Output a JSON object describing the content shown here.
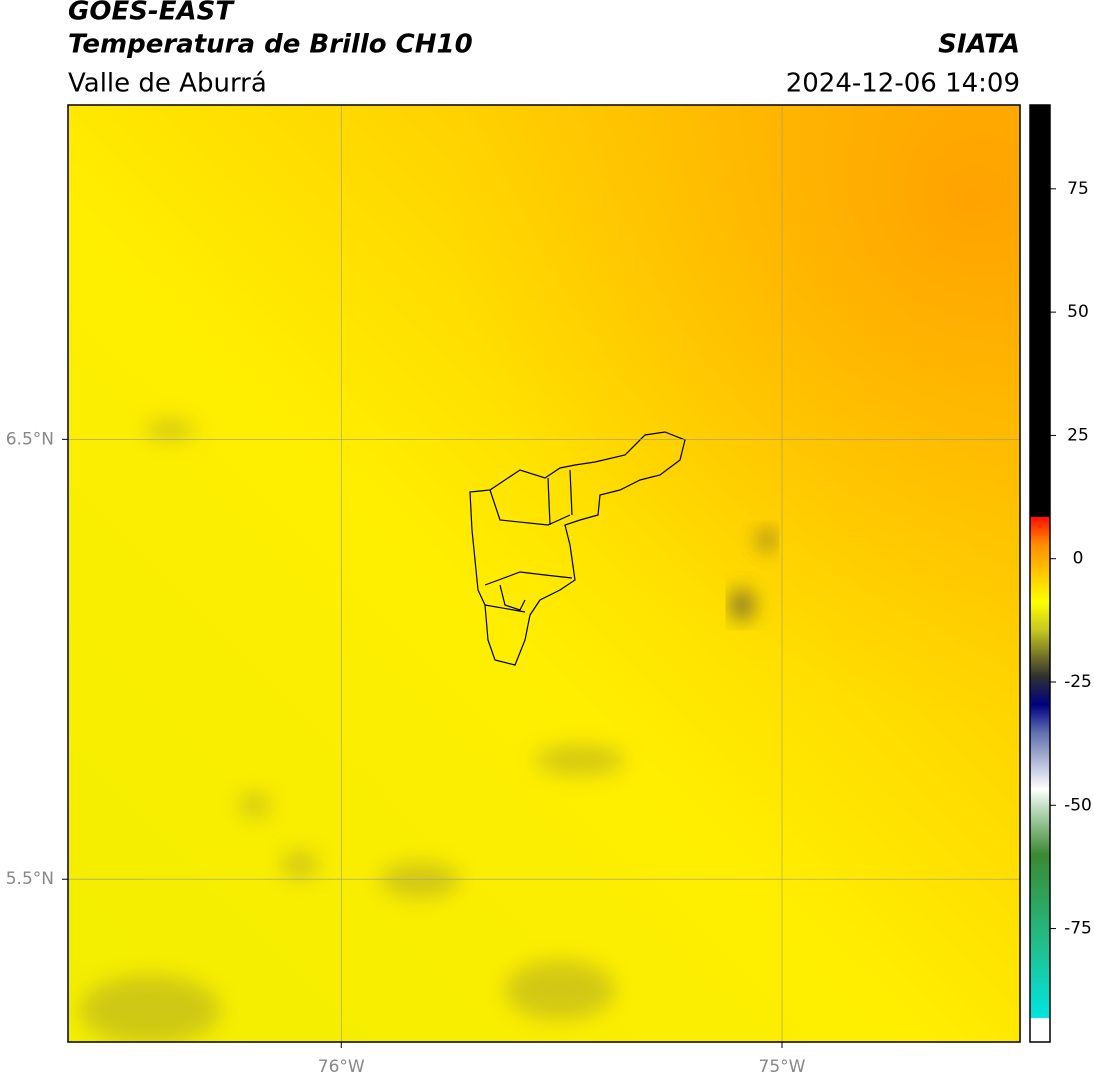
{
  "header": {
    "title": "GOES-EAST",
    "subtitle": "Temperatura de Brillo CH10",
    "region": "Valle de Aburrá",
    "source": "SIATA",
    "datetime": "2024-12-06 14:09"
  },
  "map": {
    "lonlim": [
      -76.62,
      -74.46
    ],
    "latlim": [
      5.13,
      7.26
    ],
    "lon_ticks": [
      {
        "value": -76,
        "label": "76°W"
      },
      {
        "value": -75,
        "label": "75°W"
      }
    ],
    "lat_ticks": [
      {
        "value": 6.5,
        "label": "6.5°N"
      },
      {
        "value": 5.5,
        "label": "5.5°N"
      }
    ]
  },
  "colorbar": {
    "lim": [
      -98,
      92
    ],
    "ticks": [
      75,
      50,
      25,
      0,
      -25,
      -50,
      -75
    ]
  }
}
